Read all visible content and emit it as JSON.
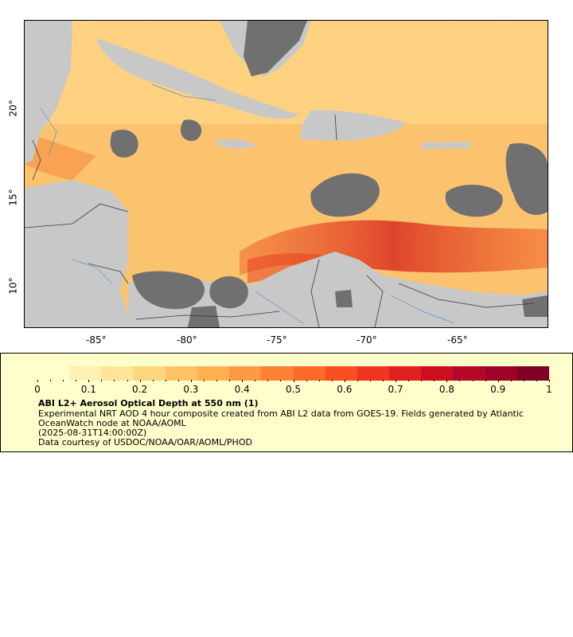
{
  "map": {
    "x_tick_labels": [
      "-85°",
      "-80°",
      "-75°",
      "-70°",
      "-65°"
    ],
    "y_tick_labels": [
      "20°",
      "15°",
      "10°"
    ],
    "colors": {
      "land": "#c8c8c8",
      "cloud": "#707070",
      "border": "#3a3a3a",
      "river": "#5b8fd0",
      "aerosol_base": "#fbb75a"
    }
  },
  "legend": {
    "colorbar_labels": [
      "0",
      "0.1",
      "0.2",
      "0.3",
      "0.4",
      "0.5",
      "0.6",
      "0.7",
      "0.8",
      "0.9",
      "1"
    ],
    "colormap": [
      "#ffffcc",
      "#fff1b3",
      "#ffe49a",
      "#fed57f",
      "#fec264",
      "#feb04f",
      "#fd9a42",
      "#fd8235",
      "#fc6a2a",
      "#f84e22",
      "#ef3520",
      "#e01f1e",
      "#cd0e20",
      "#b40626",
      "#9c0326",
      "#800026"
    ],
    "title": "ABI L2+ Aerosol Optical Depth at 550 nm (1)",
    "line1": "Experimental NRT AOD 4 hour composite created from ABI L2 data from GOES-19. Fields generated by Atlantic",
    "line2": "OceanWatch node at NOAA/AOML",
    "line3": "(2025-08-31T14:00:00Z)",
    "line4": "Data courtesy of USDOC/NOAA/OAR/AOML/PHOD"
  }
}
